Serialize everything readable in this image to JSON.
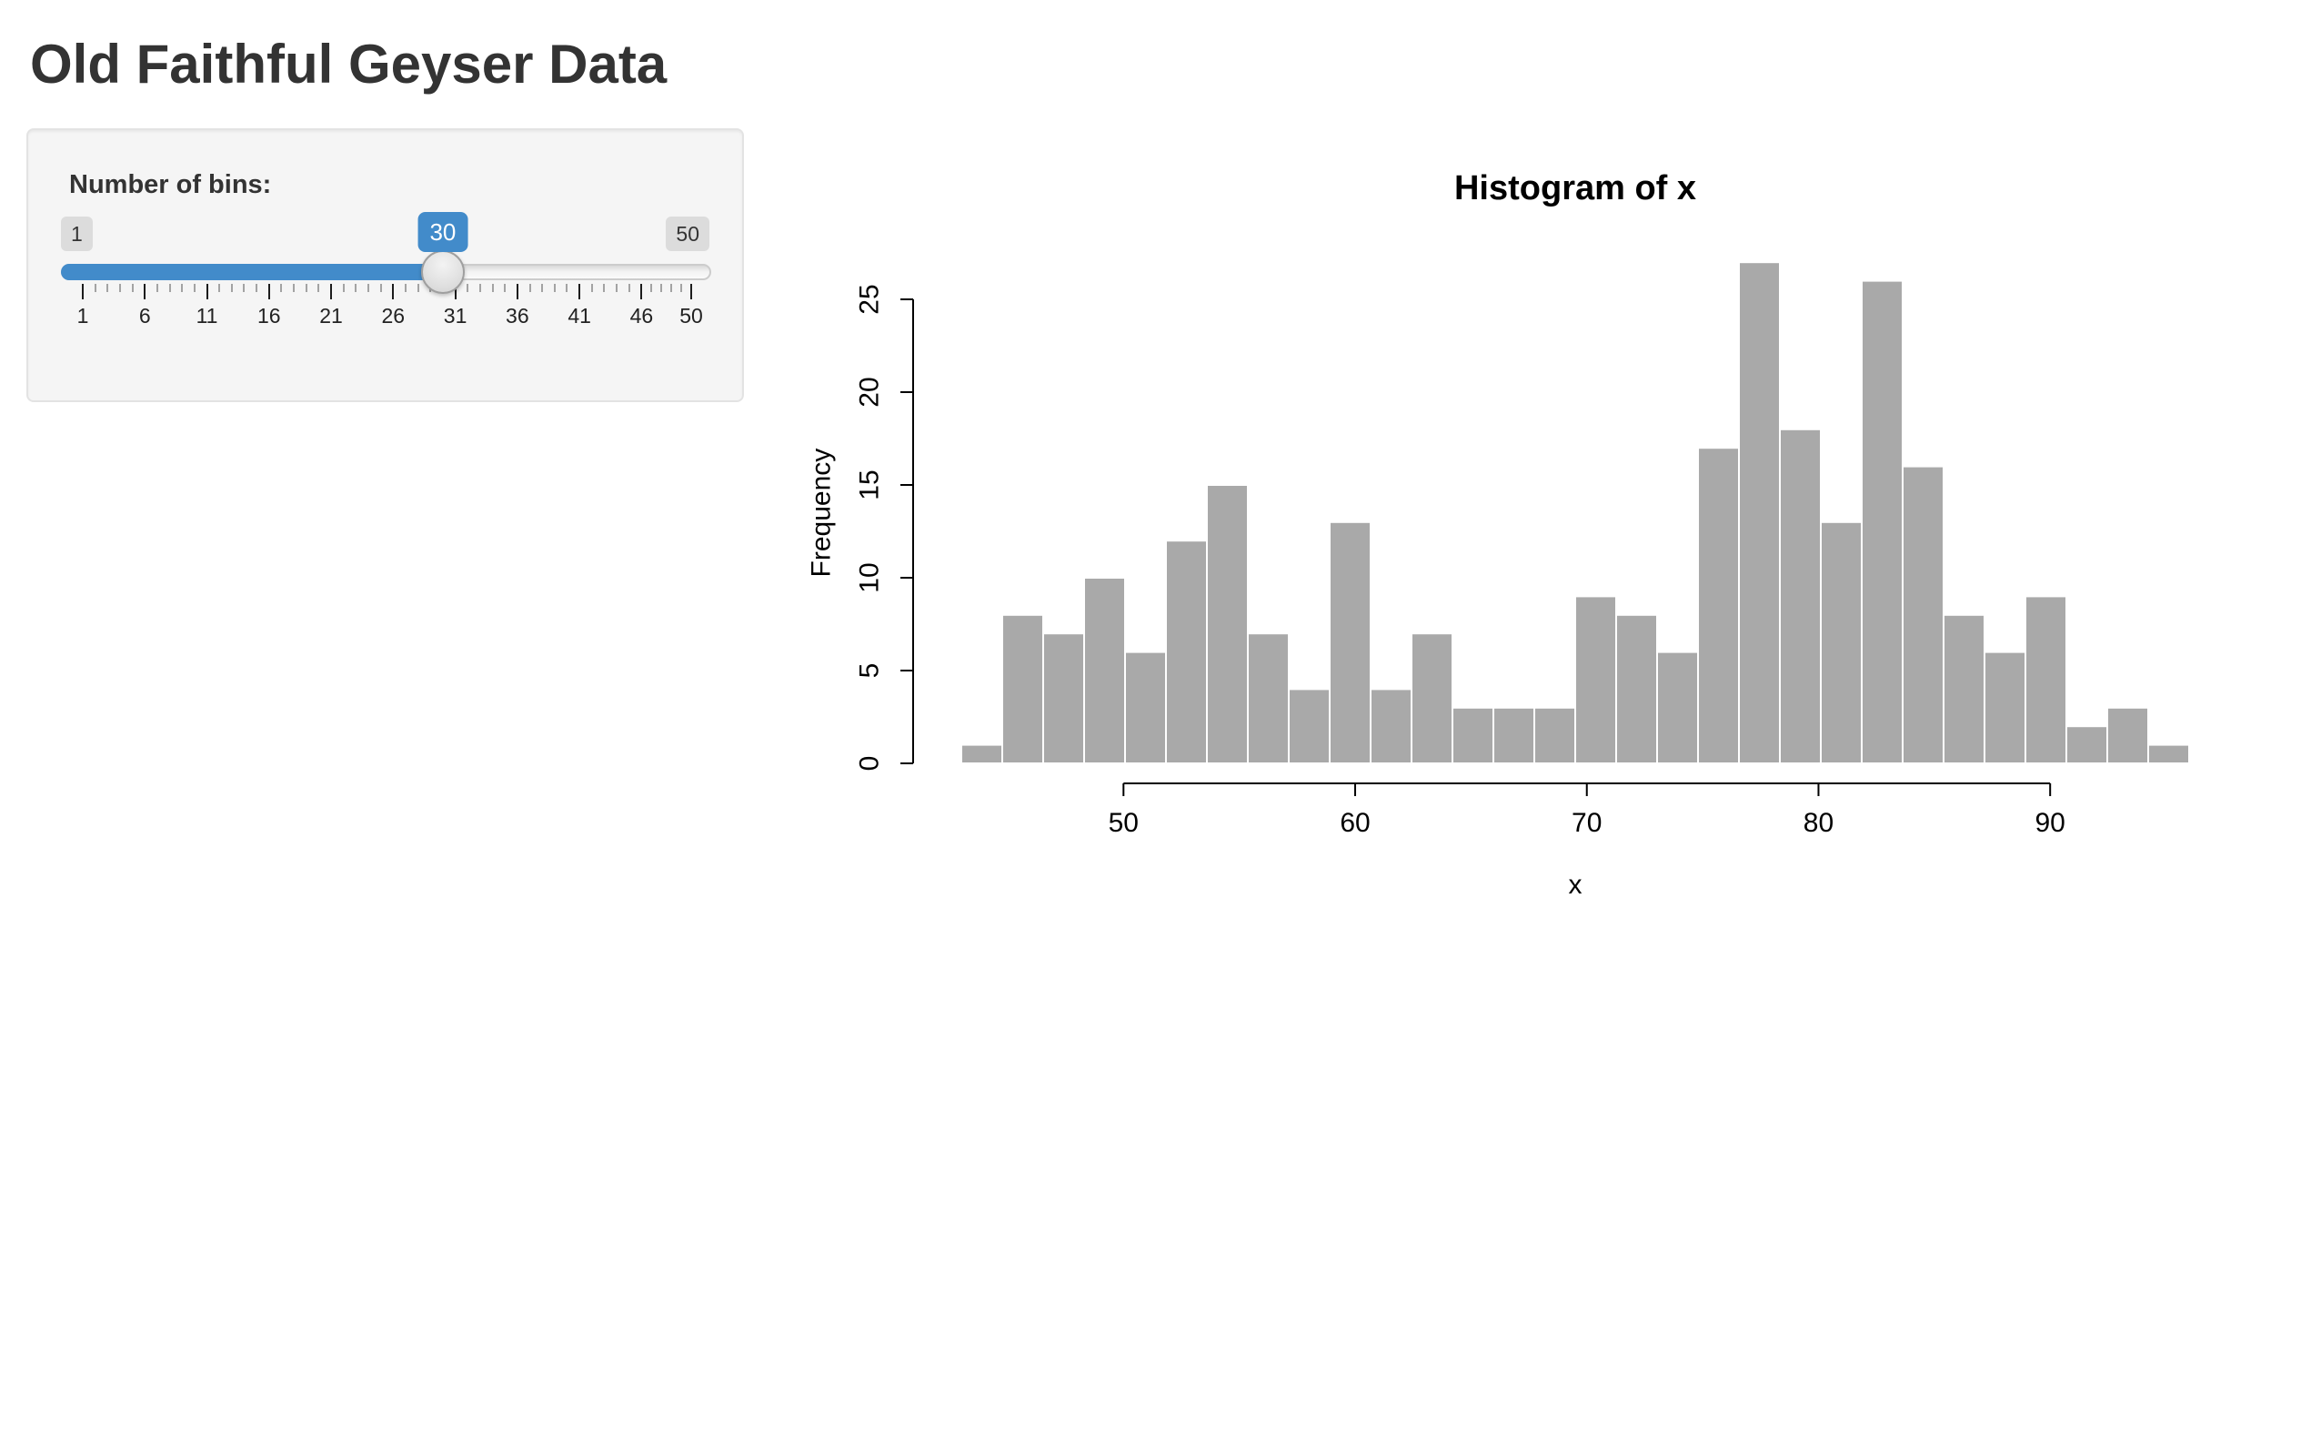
{
  "app": {
    "title": "Old Faithful Geyser Data"
  },
  "slider": {
    "label": "Number of bins:",
    "min": 1,
    "max": 50,
    "value": 30,
    "min_label": "1",
    "max_label": "50",
    "value_label": "30",
    "tick_labels": [
      1,
      6,
      11,
      16,
      21,
      26,
      31,
      36,
      41,
      46,
      50
    ],
    "minor_ticks_between": 4,
    "accent_color": "#428bca"
  },
  "chart_data": {
    "type": "bar",
    "title": "Histogram of x",
    "xlabel": "x",
    "ylabel": "Frequency",
    "bins_start": 43,
    "bins_end": 96,
    "counts": [
      1,
      8,
      7,
      10,
      6,
      12,
      15,
      7,
      4,
      13,
      4,
      7,
      3,
      3,
      3,
      9,
      8,
      6,
      17,
      27,
      18,
      13,
      26,
      16,
      8,
      6,
      9,
      2,
      3,
      1
    ],
    "x_ticks": [
      50,
      60,
      70,
      80,
      90
    ],
    "y_ticks": [
      0,
      5,
      10,
      15,
      20,
      25
    ],
    "xlim": [
      40.88,
      98.12
    ],
    "ylim": [
      0,
      27
    ],
    "grid": false,
    "legend": "none",
    "bar_fill": "#A9A9A9",
    "bar_border": "#FFFFFF"
  }
}
